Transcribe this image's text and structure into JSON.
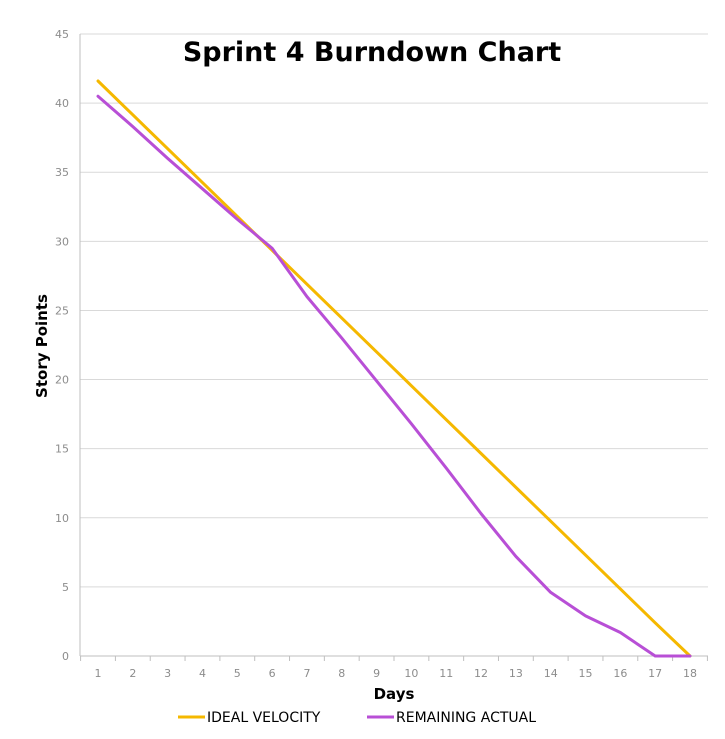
{
  "chart_data": {
    "type": "line",
    "title": "Sprint 4 Burndown Chart",
    "xlabel": "Days",
    "ylabel": "Story Points",
    "x": [
      1,
      2,
      3,
      4,
      5,
      6,
      7,
      8,
      9,
      10,
      11,
      12,
      13,
      14,
      15,
      16,
      17,
      18
    ],
    "xlim": [
      1,
      18
    ],
    "ylim": [
      0,
      45
    ],
    "yticks": [
      0,
      5,
      10,
      15,
      20,
      25,
      30,
      35,
      40,
      45
    ],
    "grid": true,
    "legend_position": "bottom",
    "series": [
      {
        "name": "IDEAL VELOCITY",
        "color": "#F5B800",
        "values": [
          41.6,
          39.15,
          36.7,
          34.25,
          31.8,
          29.35,
          26.9,
          24.45,
          22.0,
          19.55,
          17.1,
          14.65,
          12.2,
          9.75,
          7.3,
          4.85,
          2.4,
          0
        ]
      },
      {
        "name": "REMAINING ACTUAL",
        "color": "#B84FD6",
        "values": [
          40.5,
          38.3,
          36.0,
          33.8,
          31.6,
          29.5,
          26.0,
          23.0,
          19.9,
          16.8,
          13.6,
          10.3,
          7.2,
          4.6,
          2.9,
          1.7,
          0,
          0
        ]
      }
    ]
  }
}
